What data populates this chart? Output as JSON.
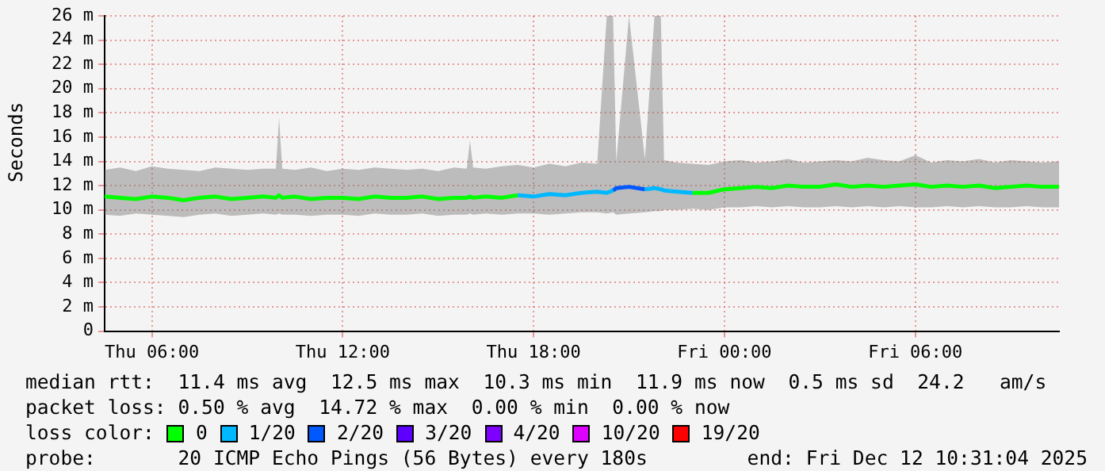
{
  "chart_data": {
    "type": "line",
    "ylabel": "Seconds",
    "legend_title": "loss color:",
    "legend": "bottom",
    "grid": true,
    "marker": "none",
    "line_style": "solid",
    "xlim": [
      "2025-12-11T04:31",
      "2025-12-12T10:31"
    ],
    "xticks": [
      {
        "value": "2025-12-11T06:00",
        "label": "Thu 06:00"
      },
      {
        "value": "2025-12-11T12:00",
        "label": "Thu 12:00"
      },
      {
        "value": "2025-12-11T18:00",
        "label": "Thu 18:00"
      },
      {
        "value": "2025-12-12T00:00",
        "label": "Fri 00:00"
      },
      {
        "value": "2025-12-12T06:00",
        "label": "Fri 06:00"
      }
    ],
    "ylim": [
      0,
      26
    ],
    "yticks": [
      0,
      {
        "value": 2,
        "label": "2 m"
      },
      {
        "value": 4,
        "label": "4 m"
      },
      {
        "value": 6,
        "label": "6 m"
      },
      {
        "value": 8,
        "label": "8 m"
      },
      {
        "value": 10,
        "label": "10 m"
      },
      {
        "value": 12,
        "label": "12 m"
      },
      {
        "value": 14,
        "label": "14 m"
      },
      {
        "value": 16,
        "label": "16 m"
      },
      {
        "value": 18,
        "label": "18 m"
      },
      {
        "value": 20,
        "label": "20 m"
      },
      {
        "value": 22,
        "label": "22 m"
      },
      {
        "value": 24,
        "label": "24 m"
      },
      {
        "value": 26,
        "label": "26 m"
      }
    ],
    "x": [
      "2025-12-11T04:31",
      "2025-12-11T05:00",
      "2025-12-11T05:30",
      "2025-12-11T06:00",
      "2025-12-11T06:30",
      "2025-12-11T07:00",
      "2025-12-11T07:30",
      "2025-12-11T08:00",
      "2025-12-11T08:30",
      "2025-12-11T09:00",
      "2025-12-11T09:30",
      "2025-12-11T09:54",
      "2025-12-11T10:00",
      "2025-12-11T10:06",
      "2025-12-11T10:30",
      "2025-12-11T11:00",
      "2025-12-11T11:30",
      "2025-12-11T12:00",
      "2025-12-11T12:30",
      "2025-12-11T13:00",
      "2025-12-11T13:30",
      "2025-12-11T14:00",
      "2025-12-11T14:30",
      "2025-12-11T15:00",
      "2025-12-11T15:30",
      "2025-12-11T15:54",
      "2025-12-11T16:00",
      "2025-12-11T16:06",
      "2025-12-11T16:30",
      "2025-12-11T17:00",
      "2025-12-11T17:30",
      "2025-12-11T18:00",
      "2025-12-11T18:30",
      "2025-12-11T19:00",
      "2025-12-11T19:30",
      "2025-12-11T20:00",
      "2025-12-11T20:18",
      "2025-12-11T20:30",
      "2025-12-11T20:36",
      "2025-12-11T21:00",
      "2025-12-11T21:30",
      "2025-12-11T21:48",
      "2025-12-11T22:00",
      "2025-12-11T22:06",
      "2025-12-11T22:30",
      "2025-12-11T23:00",
      "2025-12-11T23:30",
      "2025-12-12T00:00",
      "2025-12-12T00:30",
      "2025-12-12T01:00",
      "2025-12-12T01:30",
      "2025-12-12T02:00",
      "2025-12-12T02:30",
      "2025-12-12T03:00",
      "2025-12-12T03:30",
      "2025-12-12T04:00",
      "2025-12-12T04:30",
      "2025-12-12T05:00",
      "2025-12-12T05:30",
      "2025-12-12T06:00",
      "2025-12-12T06:30",
      "2025-12-12T07:00",
      "2025-12-12T07:30",
      "2025-12-12T08:00",
      "2025-12-12T08:30",
      "2025-12-12T09:00",
      "2025-12-12T09:30",
      "2025-12-12T10:00",
      "2025-12-12T10:31"
    ],
    "series": [
      {
        "name": "0",
        "color": "#00ff00",
        "values": [
          11.1,
          11.0,
          10.9,
          11.1,
          11.0,
          10.8,
          11.0,
          11.1,
          10.9,
          11.0,
          11.1,
          11.0,
          11.2,
          11.0,
          11.1,
          10.9,
          11.0,
          11.0,
          10.9,
          11.1,
          11.0,
          11.0,
          11.1,
          10.9,
          11.0,
          11.0,
          11.1,
          11.0,
          11.1,
          11.0,
          11.2,
          null,
          null,
          null,
          null,
          null,
          null,
          null,
          null,
          null,
          null,
          null,
          null,
          null,
          null,
          11.4,
          11.4,
          11.7,
          11.8,
          11.9,
          11.8,
          12.0,
          11.9,
          11.9,
          12.1,
          11.9,
          12.0,
          11.9,
          12.0,
          12.1,
          11.9,
          12.0,
          11.9,
          12.0,
          11.8,
          11.9,
          12.0,
          11.9,
          11.9
        ],
        "lower": [
          9.6,
          9.5,
          9.7,
          9.6,
          9.5,
          9.4,
          9.6,
          9.7,
          9.5,
          9.6,
          9.7,
          9.6,
          9.7,
          9.6,
          9.6,
          9.5,
          9.6,
          9.6,
          9.5,
          9.7,
          9.6,
          9.6,
          9.7,
          9.5,
          9.6,
          9.6,
          9.7,
          9.6,
          9.7,
          9.6,
          9.7,
          9.7,
          9.6,
          9.7,
          9.8,
          9.8,
          9.7,
          9.8,
          9.6,
          9.7,
          9.8,
          9.9,
          9.9,
          10.0,
          10.0,
          10.1,
          10.0,
          10.2,
          10.2,
          10.3,
          10.2,
          10.3,
          10.2,
          10.2,
          10.3,
          10.2,
          10.3,
          10.2,
          10.3,
          10.2,
          10.2,
          10.3,
          10.2,
          10.3,
          10.2,
          10.2,
          10.3,
          10.2,
          10.2
        ],
        "upper": [
          13.3,
          13.5,
          13.2,
          13.6,
          13.4,
          13.3,
          13.2,
          13.5,
          13.4,
          13.3,
          13.4,
          13.4,
          17.6,
          13.4,
          13.3,
          13.5,
          13.2,
          13.4,
          13.3,
          13.5,
          13.4,
          13.3,
          13.4,
          13.2,
          13.5,
          13.4,
          15.7,
          13.5,
          13.4,
          13.6,
          13.7,
          13.5,
          13.8,
          13.6,
          13.9,
          13.8,
          26,
          26,
          14.0,
          26,
          14.2,
          26,
          26,
          14.1,
          13.9,
          13.8,
          13.7,
          14.0,
          14.1,
          13.9,
          14.0,
          14.2,
          13.9,
          14.0,
          14.1,
          14.0,
          14.3,
          14.1,
          14.0,
          14.5,
          13.9,
          14.1,
          14.0,
          14.2,
          13.9,
          14.1,
          14.0,
          13.9,
          14.0
        ]
      },
      {
        "name": "1/20",
        "color": "#00b8ff",
        "values": [
          null,
          null,
          null,
          null,
          null,
          null,
          null,
          null,
          null,
          null,
          null,
          null,
          null,
          null,
          null,
          null,
          null,
          null,
          null,
          null,
          null,
          null,
          null,
          null,
          null,
          null,
          null,
          null,
          null,
          null,
          11.2,
          11.1,
          11.3,
          11.2,
          11.4,
          11.5,
          11.4,
          11.6,
          null,
          null,
          11.7,
          11.8,
          11.7,
          11.6,
          11.5,
          11.4,
          null,
          null,
          null,
          null,
          null,
          null,
          null,
          null,
          null,
          null,
          null,
          null,
          null,
          null,
          null,
          null,
          null,
          null,
          null,
          null,
          null,
          null,
          null
        ]
      },
      {
        "name": "2/20",
        "color": "#0059ff",
        "values": [
          null,
          null,
          null,
          null,
          null,
          null,
          null,
          null,
          null,
          null,
          null,
          null,
          null,
          null,
          null,
          null,
          null,
          null,
          null,
          null,
          null,
          null,
          null,
          null,
          null,
          null,
          null,
          null,
          null,
          null,
          null,
          null,
          null,
          null,
          null,
          null,
          null,
          11.6,
          11.8,
          11.9,
          11.7,
          null,
          null,
          null,
          null,
          null,
          null,
          null,
          null,
          null,
          null,
          null,
          null,
          null,
          null,
          null,
          null,
          null,
          null,
          null,
          null,
          null,
          null,
          null,
          null,
          null,
          null,
          null,
          null
        ]
      },
      {
        "name": "3/20",
        "color": "#5e00ff",
        "values": [
          null,
          null,
          null,
          null,
          null,
          null,
          null,
          null,
          null,
          null,
          null,
          null,
          null,
          null,
          null,
          null,
          null,
          null,
          null,
          null,
          null,
          null,
          null,
          null,
          null,
          null,
          null,
          null,
          null,
          null,
          null,
          null,
          null,
          null,
          null,
          null,
          null,
          null,
          null,
          null,
          null,
          null,
          null,
          null,
          null,
          null,
          null,
          null,
          null,
          null,
          null,
          null,
          null,
          null,
          null,
          null,
          null,
          null,
          null,
          null,
          null,
          null,
          null,
          null,
          null,
          null,
          null,
          null,
          null
        ]
      },
      {
        "name": "4/20",
        "color": "#7e00ff",
        "values": [
          null,
          null,
          null,
          null,
          null,
          null,
          null,
          null,
          null,
          null,
          null,
          null,
          null,
          null,
          null,
          null,
          null,
          null,
          null,
          null,
          null,
          null,
          null,
          null,
          null,
          null,
          null,
          null,
          null,
          null,
          null,
          null,
          null,
          null,
          null,
          null,
          null,
          null,
          null,
          null,
          null,
          null,
          null,
          null,
          null,
          null,
          null,
          null,
          null,
          null,
          null,
          null,
          null,
          null,
          null,
          null,
          null,
          null,
          null,
          null,
          null,
          null,
          null,
          null,
          null,
          null,
          null,
          null,
          null
        ]
      },
      {
        "name": "10/20",
        "color": "#dd00ff",
        "values": [
          null,
          null,
          null,
          null,
          null,
          null,
          null,
          null,
          null,
          null,
          null,
          null,
          null,
          null,
          null,
          null,
          null,
          null,
          null,
          null,
          null,
          null,
          null,
          null,
          null,
          null,
          null,
          null,
          null,
          null,
          null,
          null,
          null,
          null,
          null,
          null,
          null,
          null,
          null,
          null,
          null,
          null,
          null,
          null,
          null,
          null,
          null,
          null,
          null,
          null,
          null,
          null,
          null,
          null,
          null,
          null,
          null,
          null,
          null,
          null,
          null,
          null,
          null,
          null,
          null,
          null,
          null,
          null,
          null
        ]
      },
      {
        "name": "19/20",
        "color": "#ff0000",
        "values": [
          null,
          null,
          null,
          null,
          null,
          null,
          null,
          null,
          null,
          null,
          null,
          null,
          null,
          null,
          null,
          null,
          null,
          null,
          null,
          null,
          null,
          null,
          null,
          null,
          null,
          null,
          null,
          null,
          null,
          null,
          null,
          null,
          null,
          null,
          null,
          null,
          null,
          null,
          null,
          null,
          null,
          null,
          null,
          null,
          null,
          null,
          null,
          null,
          null,
          null,
          null,
          null,
          null,
          null,
          null,
          null,
          null,
          null,
          null,
          null,
          null,
          null,
          null,
          null,
          null,
          null,
          null,
          null,
          null
        ]
      }
    ],
    "annotations": [
      "median rtt:  11.4 ms avg  12.5 ms max  10.3 ms min  11.9 ms now  0.5 ms sd  24.2   am/s",
      "packet loss: 0.50 % avg  14.72 % max  0.00 % min  0.00 % now",
      "probe:       20 ICMP Echo Pings (56 Bytes) every 180s",
      "end: Fri Dec 12 10:31:04 2025"
    ]
  }
}
